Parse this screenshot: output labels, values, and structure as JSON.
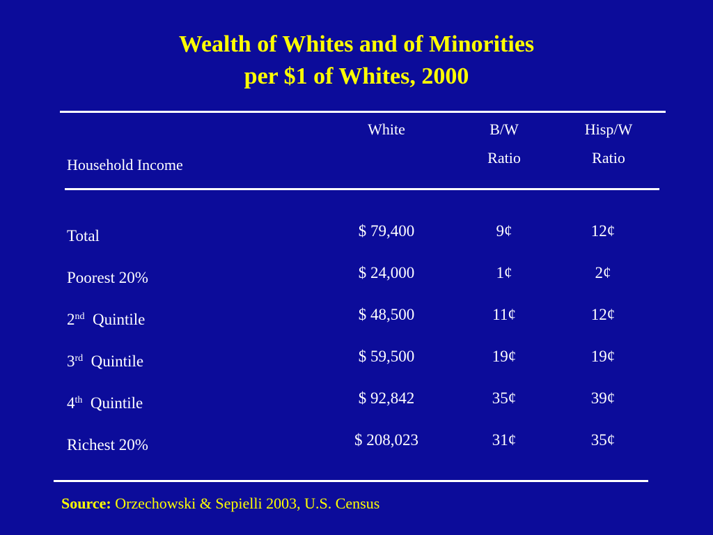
{
  "title": {
    "line1": "Wealth of Whites and of Minorities",
    "line2": "per $1 of Whites, 2000"
  },
  "headers": {
    "row_label": "Household Income",
    "white": "White",
    "bw_line1": "B/W",
    "bw_line2": "Ratio",
    "hw_line1": "Hisp/W",
    "hw_line2": "Ratio"
  },
  "rows": [
    {
      "label": "Total",
      "sup": "",
      "suffix": "",
      "white": "$ 79,400",
      "bw": "9¢",
      "hw": "12¢"
    },
    {
      "label": "Poorest 20%",
      "sup": "",
      "suffix": "",
      "white": "$ 24,000",
      "bw": "1¢",
      "hw": "2¢"
    },
    {
      "label": "2",
      "sup": "nd",
      "suffix": "Quintile",
      "white": "$ 48,500",
      "bw": "11¢",
      "hw": "12¢"
    },
    {
      "label": "3",
      "sup": "rd",
      "suffix": "Quintile",
      "white": "$ 59,500",
      "bw": "19¢",
      "hw": "19¢"
    },
    {
      "label": "4",
      "sup": "th",
      "suffix": "Quintile",
      "white": "$ 92,842",
      "bw": "35¢",
      "hw": "39¢"
    },
    {
      "label": "Richest 20%",
      "sup": "",
      "suffix": "",
      "white": "$ 208,023",
      "bw": "31¢",
      "hw": "35¢"
    }
  ],
  "source": {
    "label": "Source:",
    "text": "Orzechowski & Sepielli 2003, U.S. Census"
  },
  "colors": {
    "background": "#0c0c9a",
    "title": "#ffff00",
    "text": "#ffffff"
  }
}
